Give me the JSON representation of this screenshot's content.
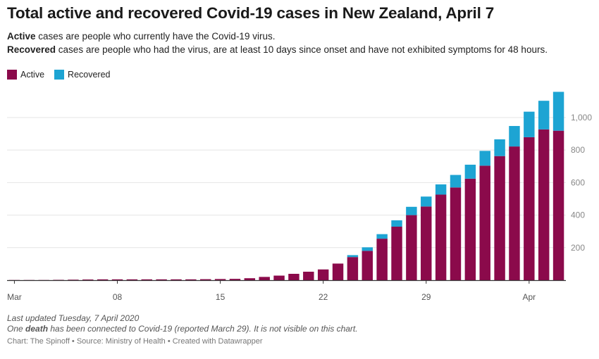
{
  "title": "Total active and recovered Covid-19 cases in New Zealand, April 7",
  "description": {
    "active_bold": "Active",
    "active_text": " cases are people who currently have the Covid-19 virus.",
    "recovered_bold": "Recovered",
    "recovered_text": " cases are people who had the virus, are at least 10 days since onset and have not exhibited symptoms for 48 hours."
  },
  "legend": [
    {
      "label": "Active",
      "color": "#8b0a4b"
    },
    {
      "label": "Recovered",
      "color": "#1da4d3"
    }
  ],
  "notes": {
    "updated": "Last updated Tuesday, 7 April 2020",
    "death_pre": "One ",
    "death_bold": "death",
    "death_post": " has been connected to Covid-19 (reported March 29). It is not visible on this chart."
  },
  "credit": "Chart: The Spinoff • Source: Ministry of Health • Created with Datawrapper",
  "chart_data": {
    "type": "bar",
    "stacked": true,
    "title": "Total active and recovered Covid-19 cases in New Zealand, April 7",
    "xlabel": "",
    "ylabel": "",
    "ylim": [
      0,
      1160
    ],
    "y_ticks": [
      200,
      400,
      600,
      800,
      1000
    ],
    "y_tick_labels": [
      "200",
      "400",
      "600",
      "800",
      "1,000"
    ],
    "x_ticks": [
      {
        "label": "Mar",
        "index": 0
      },
      {
        "label": "08",
        "index": 7
      },
      {
        "label": "15",
        "index": 14
      },
      {
        "label": "22",
        "index": 21
      },
      {
        "label": "29",
        "index": 28
      },
      {
        "label": "Apr",
        "index": 35
      }
    ],
    "categories": [
      "Mar 1",
      "Mar 2",
      "Mar 3",
      "Mar 4",
      "Mar 5",
      "Mar 6",
      "Mar 7",
      "Mar 8",
      "Mar 9",
      "Mar 10",
      "Mar 11",
      "Mar 12",
      "Mar 13",
      "Mar 14",
      "Mar 15",
      "Mar 16",
      "Mar 17",
      "Mar 18",
      "Mar 19",
      "Mar 20",
      "Mar 21",
      "Mar 22",
      "Mar 23",
      "Mar 24",
      "Mar 25",
      "Mar 26",
      "Mar 27",
      "Mar 28",
      "Mar 29",
      "Mar 30",
      "Mar 31",
      "Apr 1",
      "Apr 2",
      "Apr 3",
      "Apr 4",
      "Apr 5",
      "Apr 6",
      "Apr 7"
    ],
    "series": [
      {
        "name": "Active",
        "color": "#8b0a4b",
        "values": [
          1,
          1,
          1,
          2,
          3,
          4,
          5,
          5,
          5,
          5,
          5,
          5,
          5,
          6,
          7,
          8,
          12,
          20,
          28,
          39,
          52,
          66,
          102,
          142,
          180,
          255,
          329,
          400,
          453,
          526,
          570,
          624,
          704,
          763,
          822,
          879,
          927,
          919
        ]
      },
      {
        "name": "Recovered",
        "color": "#1da4d3",
        "values": [
          0,
          0,
          0,
          0,
          0,
          0,
          0,
          0,
          0,
          0,
          0,
          0,
          0,
          0,
          0,
          0,
          0,
          0,
          0,
          0,
          0,
          0,
          0,
          12,
          22,
          28,
          39,
          51,
          61,
          63,
          77,
          86,
          91,
          103,
          126,
          157,
          176,
          239
        ]
      }
    ]
  }
}
